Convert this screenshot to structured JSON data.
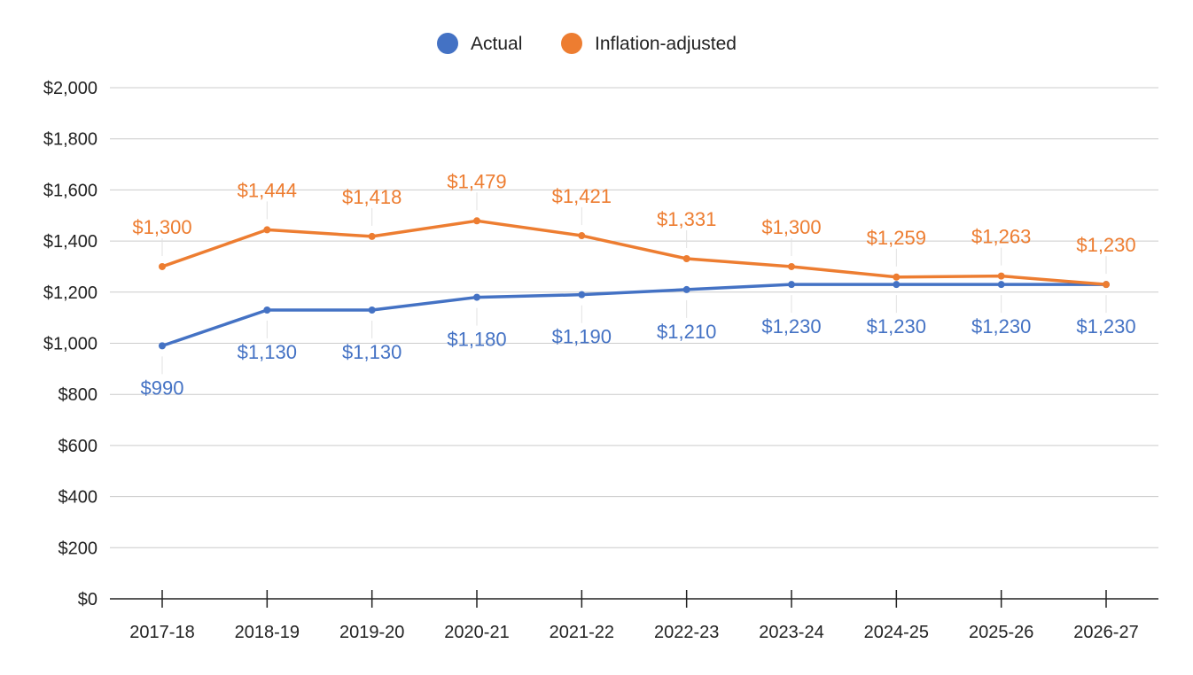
{
  "chart_data": {
    "type": "line",
    "title": "",
    "xlabel": "",
    "ylabel": "",
    "categories": [
      "2017-18",
      "2018-19",
      "2019-20",
      "2020-21",
      "2021-22",
      "2022-23",
      "2023-24",
      "2024-25",
      "2025-26",
      "2026-27"
    ],
    "ylim": [
      0,
      2000
    ],
    "yticks": [
      0,
      200,
      400,
      600,
      800,
      1000,
      1200,
      1400,
      1600,
      1800,
      2000
    ],
    "ytick_labels": [
      "$0",
      "$200",
      "$400",
      "$600",
      "$800",
      "$1,000",
      "$1,200",
      "$1,400",
      "$1,600",
      "$1,800",
      "$2,000"
    ],
    "grid": true,
    "legend_position": "top-center",
    "series": [
      {
        "name": "Actual",
        "color": "#4472c4",
        "values": [
          990,
          1130,
          1130,
          1180,
          1190,
          1210,
          1230,
          1230,
          1230,
          1230
        ],
        "labels": [
          "$990",
          "$1,130",
          "$1,130",
          "$1,180",
          "$1,190",
          "$1,210",
          "$1,230",
          "$1,230",
          "$1,230",
          "$1,230"
        ],
        "label_position": "below"
      },
      {
        "name": "Inflation-adjusted",
        "color": "#ed7d31",
        "values": [
          1300,
          1444,
          1418,
          1479,
          1421,
          1331,
          1300,
          1259,
          1263,
          1230
        ],
        "labels": [
          "$1,300",
          "$1,444",
          "$1,418",
          "$1,479",
          "$1,421",
          "$1,331",
          "$1,300",
          "$1,259",
          "$1,263",
          "$1,230"
        ],
        "label_position": "above"
      }
    ]
  }
}
